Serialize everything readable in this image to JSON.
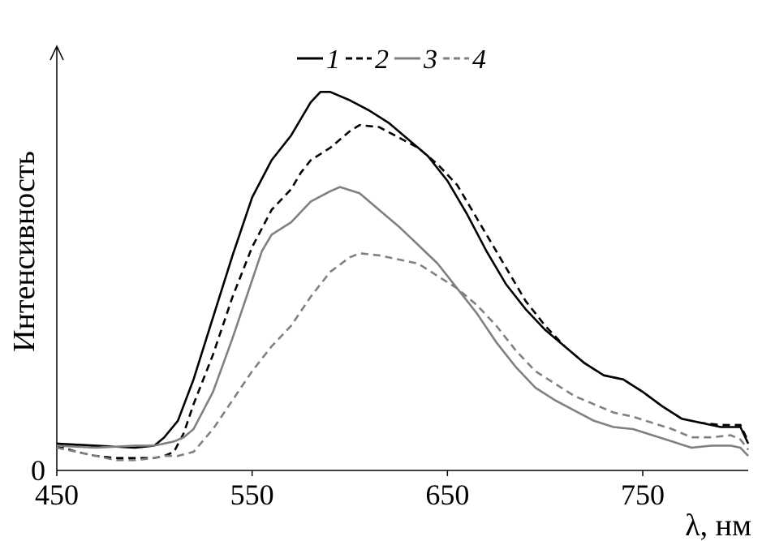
{
  "chart_data": {
    "type": "line",
    "title": "",
    "xlabel": "λ, нм",
    "ylabel": "Интенсивность",
    "xlim": [
      450,
      804
    ],
    "ylim": [
      0,
      100
    ],
    "x_ticks": [
      "450",
      "550",
      "650",
      "750"
    ],
    "y_ticks": [
      "0"
    ],
    "grid": false,
    "legend_position": "top-center",
    "series": [
      {
        "name": "1",
        "color": "#000000",
        "dash": "solid",
        "points": [
          [
            450,
            6.5
          ],
          [
            470,
            6
          ],
          [
            490,
            5.5
          ],
          [
            500,
            6
          ],
          [
            505,
            8
          ],
          [
            512,
            12
          ],
          [
            520,
            22
          ],
          [
            530,
            37
          ],
          [
            540,
            52
          ],
          [
            550,
            66
          ],
          [
            560,
            75
          ],
          [
            570,
            81
          ],
          [
            575,
            85
          ],
          [
            580,
            89
          ],
          [
            585,
            91.5
          ],
          [
            590,
            91.5
          ],
          [
            600,
            89.5
          ],
          [
            610,
            87
          ],
          [
            620,
            84
          ],
          [
            630,
            80
          ],
          [
            640,
            76
          ],
          [
            650,
            70
          ],
          [
            660,
            62
          ],
          [
            670,
            53
          ],
          [
            680,
            45
          ],
          [
            690,
            39
          ],
          [
            700,
            34
          ],
          [
            710,
            30
          ],
          [
            720,
            26
          ],
          [
            730,
            23
          ],
          [
            740,
            22
          ],
          [
            750,
            19
          ],
          [
            760,
            15.5
          ],
          [
            770,
            12.5
          ],
          [
            780,
            11.5
          ],
          [
            790,
            10.5
          ],
          [
            800,
            10.5
          ],
          [
            804,
            6.5
          ]
        ]
      },
      {
        "name": "2",
        "color": "#000000",
        "dash": "dashed",
        "points": [
          [
            450,
            6
          ],
          [
            460,
            4.5
          ],
          [
            470,
            3.5
          ],
          [
            480,
            3
          ],
          [
            490,
            3
          ],
          [
            500,
            3
          ],
          [
            505,
            3.5
          ],
          [
            510,
            4.5
          ],
          [
            515,
            9
          ],
          [
            520,
            16
          ],
          [
            530,
            28
          ],
          [
            540,
            42
          ],
          [
            550,
            54
          ],
          [
            560,
            63
          ],
          [
            570,
            68
          ],
          [
            575,
            72
          ],
          [
            580,
            75
          ],
          [
            590,
            78
          ],
          [
            600,
            82
          ],
          [
            605,
            83.5
          ],
          [
            615,
            83
          ],
          [
            625,
            80.5
          ],
          [
            635,
            78
          ],
          [
            645,
            74
          ],
          [
            655,
            69
          ],
          [
            660,
            65
          ],
          [
            670,
            57
          ],
          [
            680,
            49
          ],
          [
            690,
            41
          ],
          [
            700,
            35
          ],
          [
            710,
            30
          ],
          [
            720,
            26
          ],
          [
            730,
            23
          ],
          [
            740,
            22
          ],
          [
            750,
            19
          ],
          [
            760,
            15.5
          ],
          [
            770,
            12.5
          ],
          [
            780,
            11.5
          ],
          [
            790,
            11
          ],
          [
            800,
            11
          ],
          [
            804,
            7
          ]
        ]
      },
      {
        "name": "3",
        "color": "#808080",
        "dash": "solid",
        "points": [
          [
            450,
            6
          ],
          [
            470,
            5.5
          ],
          [
            490,
            6
          ],
          [
            500,
            6
          ],
          [
            510,
            7
          ],
          [
            515,
            8
          ],
          [
            520,
            10
          ],
          [
            530,
            19
          ],
          [
            540,
            32
          ],
          [
            550,
            46
          ],
          [
            555,
            53
          ],
          [
            560,
            57
          ],
          [
            570,
            60
          ],
          [
            580,
            65
          ],
          [
            590,
            67.5
          ],
          [
            595,
            68.5
          ],
          [
            605,
            67
          ],
          [
            615,
            63
          ],
          [
            625,
            59
          ],
          [
            635,
            54.5
          ],
          [
            645,
            50
          ],
          [
            655,
            44
          ],
          [
            665,
            38
          ],
          [
            675,
            31
          ],
          [
            685,
            25
          ],
          [
            695,
            20
          ],
          [
            705,
            17
          ],
          [
            715,
            14.5
          ],
          [
            725,
            12
          ],
          [
            735,
            10.5
          ],
          [
            745,
            10
          ],
          [
            755,
            8.5
          ],
          [
            765,
            7
          ],
          [
            775,
            5.5
          ],
          [
            785,
            6
          ],
          [
            795,
            6
          ],
          [
            800,
            5.5
          ],
          [
            804,
            3.5
          ]
        ]
      },
      {
        "name": "4",
        "color": "#808080",
        "dash": "dashed",
        "points": [
          [
            450,
            5.5
          ],
          [
            460,
            4.5
          ],
          [
            470,
            3.5
          ],
          [
            480,
            2.5
          ],
          [
            490,
            2.5
          ],
          [
            500,
            3
          ],
          [
            505,
            3.5
          ],
          [
            512,
            3.5
          ],
          [
            520,
            4.5
          ],
          [
            530,
            10
          ],
          [
            540,
            17
          ],
          [
            550,
            24
          ],
          [
            560,
            30
          ],
          [
            570,
            35
          ],
          [
            580,
            42
          ],
          [
            590,
            48
          ],
          [
            600,
            51.5
          ],
          [
            605,
            52.5
          ],
          [
            615,
            52
          ],
          [
            625,
            51
          ],
          [
            635,
            50
          ],
          [
            645,
            47
          ],
          [
            655,
            44
          ],
          [
            665,
            40
          ],
          [
            675,
            35
          ],
          [
            685,
            29
          ],
          [
            695,
            24
          ],
          [
            705,
            21
          ],
          [
            715,
            18
          ],
          [
            725,
            16
          ],
          [
            735,
            14
          ],
          [
            745,
            13
          ],
          [
            755,
            11.5
          ],
          [
            765,
            10
          ],
          [
            775,
            8
          ],
          [
            785,
            8
          ],
          [
            795,
            8.5
          ],
          [
            800,
            7.5
          ],
          [
            804,
            5
          ]
        ]
      }
    ]
  }
}
